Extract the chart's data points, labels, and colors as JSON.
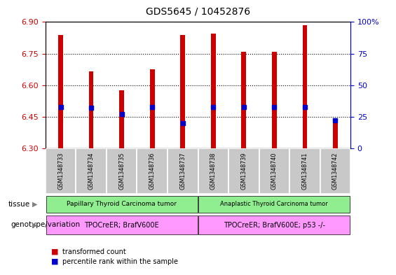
{
  "title": "GDS5645 / 10452876",
  "samples": [
    "GSM1348733",
    "GSM1348734",
    "GSM1348735",
    "GSM1348736",
    "GSM1348737",
    "GSM1348738",
    "GSM1348739",
    "GSM1348740",
    "GSM1348741",
    "GSM1348742"
  ],
  "transformed_count": [
    6.84,
    6.665,
    6.575,
    6.675,
    6.84,
    6.845,
    6.76,
    6.76,
    6.885,
    6.435
  ],
  "percentile_rank": [
    33,
    32,
    27,
    33,
    20,
    33,
    33,
    33,
    33,
    22
  ],
  "ylim": [
    6.3,
    6.9
  ],
  "yticks": [
    6.3,
    6.45,
    6.6,
    6.75,
    6.9
  ],
  "y2lim": [
    0,
    100
  ],
  "y2ticks": [
    0,
    25,
    50,
    75,
    100
  ],
  "bar_color": "#cc0000",
  "dot_color": "#0000cc",
  "tissue_label_1": "Papillary Thyroid Carcinoma tumor",
  "tissue_label_2": "Anaplastic Thyroid Carcinoma tumor",
  "tissue_color": "#90ee90",
  "geno_label_1": "TPOCreER; BrafV600E",
  "geno_label_2": "TPOCreER; BrafV600E; p53 -/-",
  "geno_color": "#ff99ff",
  "legend_color_1": "#cc0000",
  "legend_label_1": "transformed count",
  "legend_color_2": "#0000cc",
  "legend_label_2": "percentile rank within the sample",
  "axis_color_left": "#cc0000",
  "axis_color_right": "#0000cc",
  "bar_width": 0.15,
  "col_bg_color": "#c8c8c8",
  "col_border_color": "#ffffff"
}
